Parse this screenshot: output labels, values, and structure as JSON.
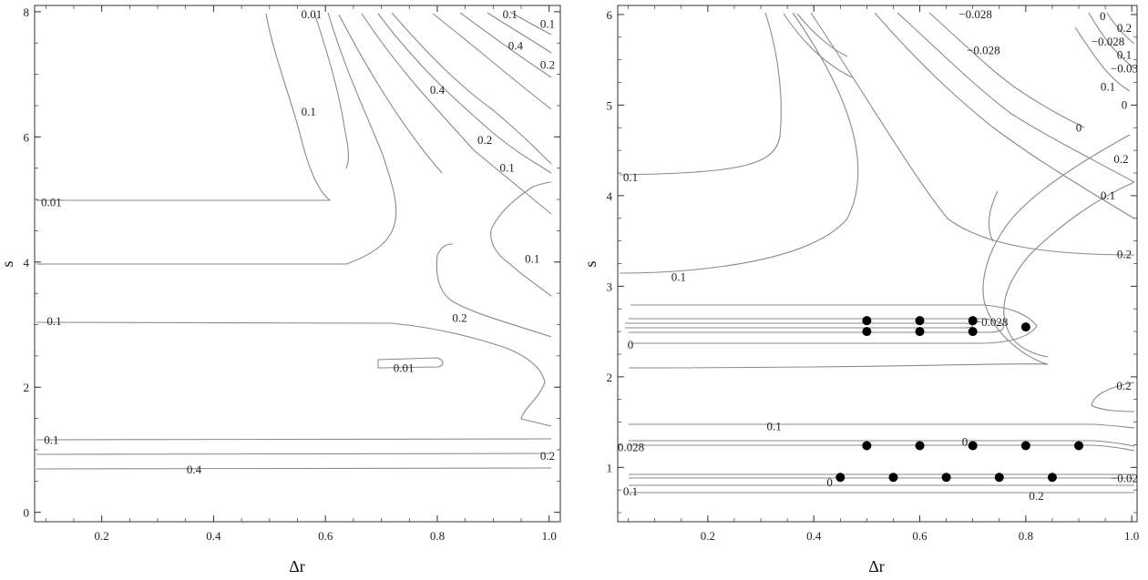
{
  "chart_data": [
    {
      "type": "contour",
      "xlabel": "Δr",
      "ylabel": "s",
      "xlim": [
        0.08,
        1.02
      ],
      "ylim": [
        -0.15,
        8.1
      ],
      "xticks": [
        "0.2",
        "0.4",
        "0.6",
        "0.8",
        "1.0"
      ],
      "xtick_values": [
        0.2,
        0.4,
        0.6,
        0.8,
        1.0
      ],
      "yticks": [
        "0",
        "2",
        "4",
        "6",
        "8"
      ],
      "ytick_values": [
        0,
        2,
        4,
        6,
        8
      ],
      "contour_labels": [
        {
          "text": "0.01",
          "x": 0.575,
          "y": 8.0
        },
        {
          "text": "0.1",
          "x": 0.93,
          "y": 8.0
        },
        {
          "text": "0.1",
          "x": 1.0,
          "y": 7.8
        },
        {
          "text": "0.4",
          "x": 0.94,
          "y": 7.45
        },
        {
          "text": "0.2",
          "x": 1.0,
          "y": 7.15
        },
        {
          "text": "0.4",
          "x": 0.8,
          "y": 6.75
        },
        {
          "text": "0.1",
          "x": 0.57,
          "y": 6.4
        },
        {
          "text": "0.2",
          "x": 0.885,
          "y": 5.95
        },
        {
          "text": "0.1",
          "x": 0.925,
          "y": 5.5
        },
        {
          "text": "0.01",
          "x": 0.11,
          "y": 4.95
        },
        {
          "text": "0.1",
          "x": 0.97,
          "y": 4.05
        },
        {
          "text": "0.2",
          "x": 0.84,
          "y": 3.1
        },
        {
          "text": "0.1",
          "x": 0.115,
          "y": 3.05
        },
        {
          "text": "0.01",
          "x": 0.74,
          "y": 2.3
        },
        {
          "text": "0.1",
          "x": 0.11,
          "y": 1.15
        },
        {
          "text": "0.2",
          "x": 1.0,
          "y": 0.9
        },
        {
          "text": "0.4",
          "x": 0.365,
          "y": 0.68
        }
      ]
    },
    {
      "type": "contour",
      "xlabel": "Δr",
      "ylabel": "s",
      "xlim": [
        0.03,
        1.01
      ],
      "ylim": [
        0.4,
        6.1
      ],
      "xticks": [
        "0.2",
        "0.4",
        "0.6",
        "0.8",
        "1.0"
      ],
      "xtick_values": [
        0.2,
        0.4,
        0.6,
        0.8,
        1.0
      ],
      "yticks": [
        "1",
        "2",
        "3",
        "4",
        "5",
        "6"
      ],
      "ytick_values": [
        1,
        2,
        3,
        4,
        5,
        6
      ],
      "contour_labels": [
        {
          "text": "−0.028",
          "x": 0.705,
          "y": 6.0
        },
        {
          "text": "0",
          "x": 0.945,
          "y": 5.98
        },
        {
          "text": "0.2",
          "x": 0.995,
          "y": 5.85
        },
        {
          "text": "−0.028",
          "x": 0.72,
          "y": 5.6
        },
        {
          "text": "−0.028",
          "x": 0.955,
          "y": 5.7
        },
        {
          "text": "0.1",
          "x": 1.0,
          "y": 5.55
        },
        {
          "text": "−0.03",
          "x": 1.0,
          "y": 5.4
        },
        {
          "text": "0.1",
          "x": 0.955,
          "y": 5.2
        },
        {
          "text": "0",
          "x": 1.0,
          "y": 5.0
        },
        {
          "text": "0",
          "x": 0.9,
          "y": 4.75
        },
        {
          "text": "0.2",
          "x": 0.98,
          "y": 4.4
        },
        {
          "text": "0.1",
          "x": 0.05,
          "y": 4.2
        },
        {
          "text": "0.1",
          "x": 0.955,
          "y": 4.0
        },
        {
          "text": "0.2",
          "x": 1.0,
          "y": 3.35
        },
        {
          "text": "0.1",
          "x": 0.145,
          "y": 3.1
        },
        {
          "text": "−0.028",
          "x": 0.735,
          "y": 2.6
        },
        {
          "text": "0",
          "x": 0.045,
          "y": 2.35
        },
        {
          "text": "0.2",
          "x": 0.985,
          "y": 1.9
        },
        {
          "text": "0.1",
          "x": 0.325,
          "y": 1.45
        },
        {
          "text": "0",
          "x": 0.685,
          "y": 1.28
        },
        {
          "text": "0.028",
          "x": 0.055,
          "y": 1.22
        },
        {
          "text": "−0.02",
          "x": 1.0,
          "y": 0.88
        },
        {
          "text": "0",
          "x": 0.43,
          "y": 0.83
        },
        {
          "text": "0.1",
          "x": 0.05,
          "y": 0.73
        },
        {
          "text": "0.2",
          "x": 0.82,
          "y": 0.68
        }
      ],
      "points": [
        {
          "x": 0.5,
          "y": 2.62
        },
        {
          "x": 0.6,
          "y": 2.62
        },
        {
          "x": 0.7,
          "y": 2.62
        },
        {
          "x": 0.5,
          "y": 2.5
        },
        {
          "x": 0.6,
          "y": 2.5
        },
        {
          "x": 0.7,
          "y": 2.5
        },
        {
          "x": 0.8,
          "y": 2.55
        },
        {
          "x": 0.5,
          "y": 1.24
        },
        {
          "x": 0.6,
          "y": 1.24
        },
        {
          "x": 0.7,
          "y": 1.24
        },
        {
          "x": 0.8,
          "y": 1.24
        },
        {
          "x": 0.9,
          "y": 1.24
        },
        {
          "x": 0.45,
          "y": 0.89
        },
        {
          "x": 0.55,
          "y": 0.89
        },
        {
          "x": 0.65,
          "y": 0.89
        },
        {
          "x": 0.75,
          "y": 0.89
        },
        {
          "x": 0.85,
          "y": 0.89
        }
      ]
    }
  ]
}
